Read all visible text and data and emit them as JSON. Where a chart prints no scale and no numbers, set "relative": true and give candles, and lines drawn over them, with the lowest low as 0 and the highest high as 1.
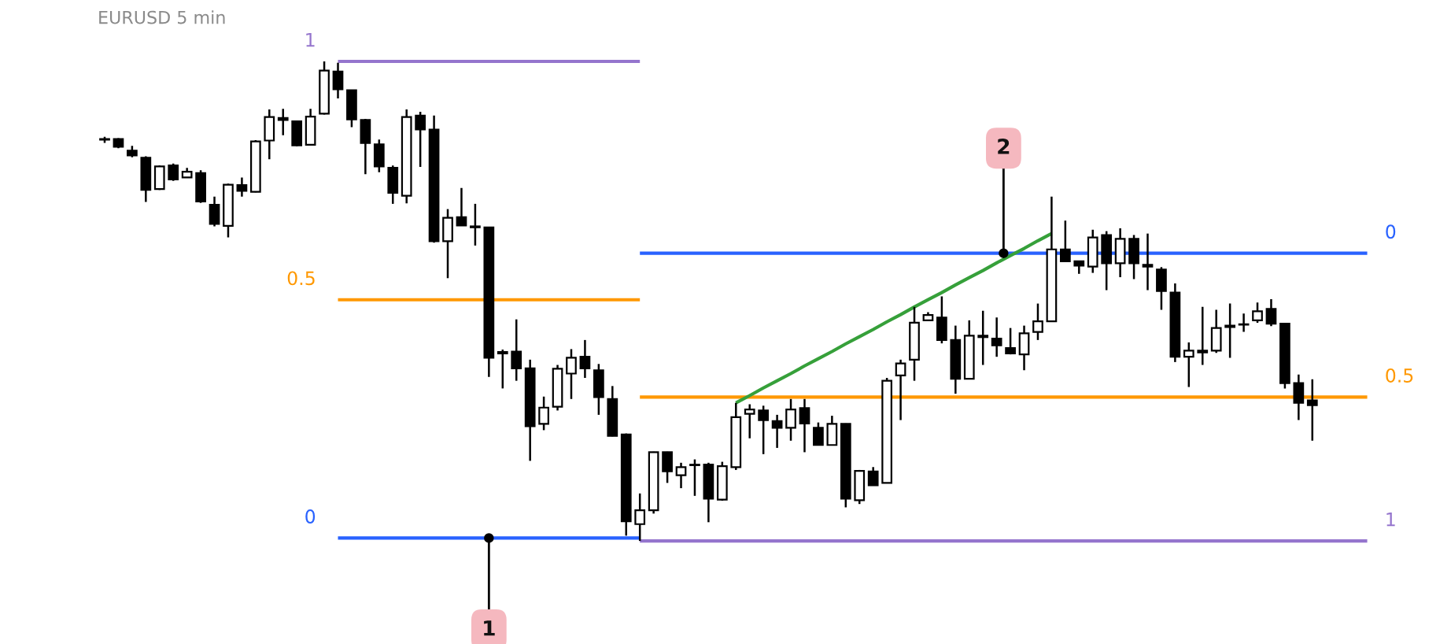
{
  "chart_data": {
    "type": "candlestick",
    "title": "EURUSD 5 min",
    "relative": true,
    "tick_labels": false,
    "color": "#000000",
    "categories": [
      null,
      null,
      null,
      null,
      null,
      null,
      null,
      null,
      null,
      null,
      null,
      null,
      null,
      null,
      null,
      null,
      null,
      null,
      null,
      null,
      null,
      null,
      null,
      null,
      null,
      null,
      null,
      null,
      null,
      null,
      null,
      null,
      null,
      null,
      null,
      null,
      null,
      null,
      null,
      null,
      null,
      null,
      null,
      null,
      null,
      null,
      null,
      null,
      null,
      null,
      null,
      null,
      null,
      null,
      null,
      null,
      null,
      null,
      null,
      null,
      null,
      null,
      null,
      null,
      null,
      null,
      null,
      null,
      null,
      null,
      null,
      null,
      null,
      null,
      null,
      null,
      null,
      null,
      null,
      null,
      null,
      null,
      null,
      null,
      null,
      null,
      null,
      null,
      null,
      null,
      null,
      null,
      null
    ],
    "ohlc": [
      [
        0.838,
        0.843,
        0.83,
        0.837
      ],
      [
        0.838,
        0.84,
        0.819,
        0.822
      ],
      [
        0.814,
        0.824,
        0.8,
        0.804
      ],
      [
        0.799,
        0.802,
        0.707,
        0.732
      ],
      [
        0.734,
        0.783,
        0.732,
        0.781
      ],
      [
        0.783,
        0.787,
        0.751,
        0.754
      ],
      [
        0.758,
        0.778,
        0.757,
        0.77
      ],
      [
        0.767,
        0.773,
        0.705,
        0.708
      ],
      [
        0.701,
        0.718,
        0.656,
        0.661
      ],
      [
        0.657,
        0.745,
        0.633,
        0.743
      ],
      [
        0.742,
        0.758,
        0.718,
        0.73
      ],
      [
        0.728,
        0.836,
        0.727,
        0.833
      ],
      [
        0.835,
        0.9,
        0.796,
        0.884
      ],
      [
        0.882,
        0.901,
        0.846,
        0.878
      ],
      [
        0.875,
        0.877,
        0.823,
        0.825
      ],
      [
        0.826,
        0.901,
        0.825,
        0.885
      ],
      [
        0.891,
        1.0,
        0.889,
        0.981
      ],
      [
        0.979,
        0.997,
        0.923,
        0.942
      ],
      [
        0.94,
        0.941,
        0.863,
        0.879
      ],
      [
        0.878,
        0.88,
        0.765,
        0.83
      ],
      [
        0.827,
        0.837,
        0.769,
        0.781
      ],
      [
        0.778,
        0.783,
        0.703,
        0.726
      ],
      [
        0.72,
        0.9,
        0.704,
        0.884
      ],
      [
        0.887,
        0.895,
        0.78,
        0.858
      ],
      [
        0.858,
        0.887,
        0.622,
        0.625
      ],
      [
        0.625,
        0.692,
        0.548,
        0.674
      ],
      [
        0.675,
        0.736,
        0.657,
        0.658
      ],
      [
        0.656,
        0.703,
        0.616,
        0.654
      ],
      [
        0.654,
        0.655,
        0.342,
        0.382
      ],
      [
        0.394,
        0.399,
        0.318,
        0.391
      ],
      [
        0.395,
        0.462,
        0.334,
        0.36
      ],
      [
        0.36,
        0.378,
        0.167,
        0.239
      ],
      [
        0.244,
        0.301,
        0.231,
        0.278
      ],
      [
        0.28,
        0.367,
        0.272,
        0.359
      ],
      [
        0.349,
        0.4,
        0.296,
        0.382
      ],
      [
        0.384,
        0.419,
        0.34,
        0.36
      ],
      [
        0.356,
        0.369,
        0.263,
        0.3
      ],
      [
        0.296,
        0.323,
        0.218,
        0.219
      ],
      [
        0.222,
        0.224,
        0.011,
        0.041
      ],
      [
        0.035,
        0.099,
        0.0,
        0.064
      ],
      [
        0.064,
        0.186,
        0.057,
        0.185
      ],
      [
        0.185,
        0.186,
        0.121,
        0.145
      ],
      [
        0.137,
        0.163,
        0.11,
        0.154
      ],
      [
        0.158,
        0.17,
        0.094,
        0.159
      ],
      [
        0.159,
        0.163,
        0.039,
        0.088
      ],
      [
        0.086,
        0.165,
        0.084,
        0.156
      ],
      [
        0.154,
        0.288,
        0.148,
        0.258
      ],
      [
        0.265,
        0.285,
        0.214,
        0.274
      ],
      [
        0.272,
        0.282,
        0.181,
        0.252
      ],
      [
        0.25,
        0.263,
        0.194,
        0.236
      ],
      [
        0.236,
        0.296,
        0.209,
        0.274
      ],
      [
        0.277,
        0.296,
        0.185,
        0.245
      ],
      [
        0.236,
        0.247,
        0.199,
        0.2
      ],
      [
        0.2,
        0.261,
        0.199,
        0.244
      ],
      [
        0.244,
        0.245,
        0.07,
        0.088
      ],
      [
        0.085,
        0.148,
        0.077,
        0.146
      ],
      [
        0.145,
        0.154,
        0.115,
        0.116
      ],
      [
        0.121,
        0.34,
        0.12,
        0.334
      ],
      [
        0.345,
        0.378,
        0.252,
        0.37
      ],
      [
        0.378,
        0.488,
        0.334,
        0.455
      ],
      [
        0.46,
        0.477,
        0.459,
        0.471
      ],
      [
        0.466,
        0.51,
        0.412,
        0.419
      ],
      [
        0.419,
        0.449,
        0.307,
        0.338
      ],
      [
        0.338,
        0.46,
        0.337,
        0.428
      ],
      [
        0.428,
        0.48,
        0.367,
        0.425
      ],
      [
        0.422,
        0.466,
        0.384,
        0.408
      ],
      [
        0.402,
        0.444,
        0.389,
        0.391
      ],
      [
        0.389,
        0.449,
        0.356,
        0.433
      ],
      [
        0.436,
        0.495,
        0.419,
        0.458
      ],
      [
        0.458,
        0.718,
        0.457,
        0.608
      ],
      [
        0.608,
        0.668,
        0.582,
        0.583
      ],
      [
        0.583,
        0.584,
        0.557,
        0.574
      ],
      [
        0.572,
        0.649,
        0.559,
        0.633
      ],
      [
        0.638,
        0.646,
        0.523,
        0.579
      ],
      [
        0.579,
        0.652,
        0.55,
        0.63
      ],
      [
        0.63,
        0.638,
        0.546,
        0.579
      ],
      [
        0.576,
        0.641,
        0.523,
        0.572
      ],
      [
        0.566,
        0.571,
        0.482,
        0.521
      ],
      [
        0.518,
        0.537,
        0.373,
        0.384
      ],
      [
        0.384,
        0.414,
        0.321,
        0.397
      ],
      [
        0.397,
        0.488,
        0.367,
        0.393
      ],
      [
        0.397,
        0.482,
        0.392,
        0.444
      ],
      [
        0.449,
        0.495,
        0.382,
        0.446
      ],
      [
        0.452,
        0.474,
        0.436,
        0.451
      ],
      [
        0.46,
        0.497,
        0.455,
        0.479
      ],
      [
        0.484,
        0.504,
        0.448,
        0.453
      ],
      [
        0.453,
        0.454,
        0.318,
        0.329
      ],
      [
        0.329,
        0.347,
        0.252,
        0.288
      ],
      [
        0.293,
        0.337,
        0.209,
        0.283
      ],
      null,
      null,
      null,
      null
    ],
    "series": [
      {
        "type": "line",
        "name": "1",
        "color": "#9575cd",
        "values": [
          null,
          null,
          null,
          null,
          null,
          null,
          null,
          null,
          null,
          null,
          null,
          null,
          null,
          null,
          null,
          null,
          null,
          1.0,
          1.0,
          1.0,
          1.0,
          1.0,
          1.0,
          1.0,
          1.0,
          1.0,
          1.0,
          1.0,
          1.0,
          1.0,
          1.0,
          1.0,
          1.0,
          1.0,
          1.0,
          1.0,
          1.0,
          1.0,
          1.0,
          1.0,
          null,
          null,
          null,
          null,
          null,
          null,
          null,
          null,
          null,
          null,
          null,
          null,
          null,
          null,
          null,
          null,
          null,
          null,
          null,
          null,
          null,
          null,
          null,
          null,
          null,
          null,
          null,
          null,
          null,
          null,
          null,
          null,
          null,
          null,
          null,
          null,
          null,
          null,
          null,
          null,
          null,
          null,
          null,
          null,
          null,
          null,
          null,
          null,
          null,
          null,
          null,
          null,
          null
        ]
      },
      {
        "type": "line",
        "name": "0.5",
        "color": "#ff9800",
        "values": [
          null,
          null,
          null,
          null,
          null,
          null,
          null,
          null,
          null,
          null,
          null,
          null,
          null,
          null,
          null,
          null,
          null,
          0.503,
          0.503,
          0.503,
          0.503,
          0.503,
          0.503,
          0.503,
          0.503,
          0.503,
          0.503,
          0.503,
          0.503,
          0.503,
          0.503,
          0.503,
          0.503,
          0.503,
          0.503,
          0.503,
          0.503,
          0.503,
          0.503,
          0.503,
          null,
          null,
          null,
          null,
          null,
          null,
          null,
          null,
          null,
          null,
          null,
          null,
          null,
          null,
          null,
          null,
          null,
          null,
          null,
          null,
          null,
          null,
          null,
          null,
          null,
          null,
          null,
          null,
          null,
          null,
          null,
          null,
          null,
          null,
          null,
          null,
          null,
          null,
          null,
          null,
          null,
          null,
          null,
          null,
          null,
          null,
          null,
          null,
          null,
          null,
          null,
          null,
          null
        ]
      },
      {
        "type": "line",
        "name": "0",
        "color": "#2962ff",
        "values": [
          null,
          null,
          null,
          null,
          null,
          null,
          null,
          null,
          null,
          null,
          null,
          null,
          null,
          null,
          null,
          null,
          null,
          0.006,
          0.006,
          0.006,
          0.006,
          0.006,
          0.006,
          0.006,
          0.006,
          0.006,
          0.006,
          0.006,
          0.006,
          0.006,
          0.006,
          0.006,
          0.006,
          0.006,
          0.006,
          0.006,
          0.006,
          0.006,
          0.006,
          0.006,
          null,
          null,
          null,
          null,
          null,
          null,
          null,
          null,
          null,
          null,
          null,
          null,
          null,
          null,
          null,
          null,
          null,
          null,
          null,
          null,
          null,
          null,
          null,
          null,
          null,
          null,
          null,
          null,
          null,
          null,
          null,
          null,
          null,
          null,
          null,
          null,
          null,
          null,
          null,
          null,
          null,
          null,
          null,
          null,
          null,
          null,
          null,
          null,
          null,
          null,
          null,
          null,
          null
        ]
      },
      {
        "type": "line",
        "name": "0",
        "color": "#2962ff",
        "values": [
          null,
          null,
          null,
          null,
          null,
          null,
          null,
          null,
          null,
          null,
          null,
          null,
          null,
          null,
          null,
          null,
          null,
          null,
          null,
          null,
          null,
          null,
          null,
          null,
          null,
          null,
          null,
          null,
          null,
          null,
          null,
          null,
          null,
          null,
          null,
          null,
          null,
          null,
          null,
          0.6,
          0.6,
          0.6,
          0.6,
          0.6,
          0.6,
          0.6,
          0.6,
          0.6,
          0.6,
          0.6,
          0.6,
          0.6,
          0.6,
          0.6,
          0.6,
          0.6,
          0.6,
          0.6,
          0.6,
          0.6,
          0.6,
          0.6,
          0.6,
          0.6,
          0.6,
          0.6,
          0.6,
          0.6,
          0.6,
          0.6,
          0.6,
          0.6,
          0.6,
          0.6,
          0.6,
          0.6,
          0.6,
          0.6,
          0.6,
          0.6,
          0.6,
          0.6,
          0.6,
          0.6,
          0.6,
          0.6,
          0.6,
          0.6,
          0.6,
          0.6,
          0.6,
          0.6,
          0.6
        ]
      },
      {
        "type": "line",
        "name": "0.5",
        "color": "#ff9800",
        "values": [
          null,
          null,
          null,
          null,
          null,
          null,
          null,
          null,
          null,
          null,
          null,
          null,
          null,
          null,
          null,
          null,
          null,
          null,
          null,
          null,
          null,
          null,
          null,
          null,
          null,
          null,
          null,
          null,
          null,
          null,
          null,
          null,
          null,
          null,
          null,
          null,
          null,
          null,
          null,
          0.3,
          0.3,
          0.3,
          0.3,
          0.3,
          0.3,
          0.3,
          0.3,
          0.3,
          0.3,
          0.3,
          0.3,
          0.3,
          0.3,
          0.3,
          0.3,
          0.3,
          0.3,
          0.3,
          0.3,
          0.3,
          0.3,
          0.3,
          0.3,
          0.3,
          0.3,
          0.3,
          0.3,
          0.3,
          0.3,
          0.3,
          0.3,
          0.3,
          0.3,
          0.3,
          0.3,
          0.3,
          0.3,
          0.3,
          0.3,
          0.3,
          0.3,
          0.3,
          0.3,
          0.3,
          0.3,
          0.3,
          0.3,
          0.3,
          0.3,
          0.3,
          0.3,
          0.3,
          0.3
        ]
      },
      {
        "type": "line",
        "name": "1",
        "color": "#9575cd",
        "values": [
          null,
          null,
          null,
          null,
          null,
          null,
          null,
          null,
          null,
          null,
          null,
          null,
          null,
          null,
          null,
          null,
          null,
          null,
          null,
          null,
          null,
          null,
          null,
          null,
          null,
          null,
          null,
          null,
          null,
          null,
          null,
          null,
          null,
          null,
          null,
          null,
          null,
          null,
          null,
          0.0,
          0.0,
          0.0,
          0.0,
          0.0,
          0.0,
          0.0,
          0.0,
          0.0,
          0.0,
          0.0,
          0.0,
          0.0,
          0.0,
          0.0,
          0.0,
          0.0,
          0.0,
          0.0,
          0.0,
          0.0,
          0.0,
          0.0,
          0.0,
          0.0,
          0.0,
          0.0,
          0.0,
          0.0,
          0.0,
          0.0,
          0.0,
          0.0,
          0.0,
          0.0,
          0.0,
          0.0,
          0.0,
          0.0,
          0.0,
          0.0,
          0.0,
          0.0,
          0.0,
          0.0,
          0.0,
          0.0,
          0.0,
          0.0,
          0.0,
          0.0,
          0.0,
          0.0,
          0.0
        ]
      },
      {
        "type": "line",
        "color": "#36a03a",
        "values": [
          null,
          null,
          null,
          null,
          null,
          null,
          null,
          null,
          null,
          null,
          null,
          null,
          null,
          null,
          null,
          null,
          null,
          null,
          null,
          null,
          null,
          null,
          null,
          null,
          null,
          null,
          null,
          null,
          null,
          null,
          null,
          null,
          null,
          null,
          null,
          null,
          null,
          null,
          null,
          null,
          null,
          null,
          null,
          null,
          null,
          null,
          0.288,
          0.303,
          0.319,
          0.334,
          0.349,
          0.365,
          0.38,
          0.395,
          0.411,
          0.426,
          0.441,
          0.457,
          0.472,
          0.488,
          0.503,
          0.518,
          0.534,
          0.549,
          0.564,
          0.58,
          0.595,
          0.61,
          0.626,
          0.641,
          null,
          null,
          null,
          null,
          null,
          null,
          null,
          null,
          null,
          null,
          null,
          null,
          null,
          null,
          null,
          null,
          null,
          null,
          null,
          null,
          null,
          null,
          null
        ]
      }
    ],
    "annotations": [
      {
        "text": "1",
        "y": 0.006
      },
      {
        "text": "2",
        "y": 0.6
      }
    ]
  }
}
